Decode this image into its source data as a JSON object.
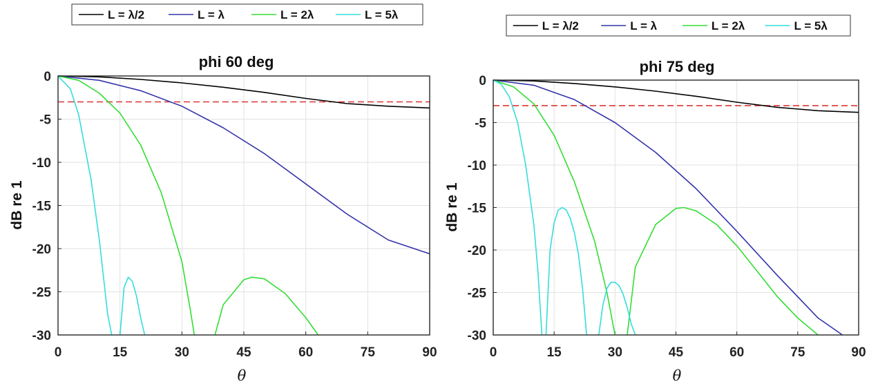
{
  "legend_labels": [
    "L = λ/2",
    "L = λ",
    "L = 2λ",
    "L = 5λ"
  ],
  "series_colors": [
    "#000000",
    "#3333aa",
    "#33dd33",
    "#33dddd"
  ],
  "reference_color": "#dd3333",
  "chart_data": [
    {
      "type": "line",
      "title": "phi 60 deg",
      "xlabel": "θ",
      "ylabel": "dB re 1",
      "xlim": [
        0,
        90
      ],
      "ylim": [
        -30,
        0
      ],
      "xticks": [
        0,
        15,
        30,
        45,
        60,
        75,
        90
      ],
      "yticks": [
        0,
        -5,
        -10,
        -15,
        -20,
        -25,
        -30
      ],
      "grid": true,
      "legend_position": "top",
      "reference_line": {
        "y": -3,
        "style": "dashed"
      },
      "series": [
        {
          "name": "L = λ/2",
          "x": [
            0,
            10,
            20,
            30,
            40,
            50,
            60,
            70,
            80,
            90
          ],
          "y": [
            0,
            -0.1,
            -0.4,
            -0.8,
            -1.3,
            -1.9,
            -2.6,
            -3.2,
            -3.5,
            -3.7
          ]
        },
        {
          "name": "L = λ",
          "x": [
            0,
            10,
            20,
            30,
            40,
            50,
            60,
            70,
            80,
            90
          ],
          "y": [
            0,
            -0.5,
            -1.7,
            -3.5,
            -6.0,
            -9.0,
            -12.5,
            -16.0,
            -19.0,
            -20.6
          ]
        },
        {
          "name": "L = 2λ",
          "x": [
            0,
            5,
            10,
            15,
            20,
            25,
            30,
            32,
            33,
            38,
            40,
            45,
            47,
            50,
            55,
            60,
            63
          ],
          "y": [
            0,
            -0.5,
            -2.0,
            -4.3,
            -8.0,
            -13.5,
            -21.5,
            -27.0,
            -30,
            -30,
            -26.5,
            -23.6,
            -23.3,
            -23.5,
            -25.2,
            -28.0,
            -30
          ]
        },
        {
          "name": "L = 5λ",
          "x": [
            0,
            3,
            5,
            8,
            10,
            12,
            13,
            15,
            16,
            17,
            18,
            19,
            20,
            21
          ],
          "y": [
            0,
            -1.5,
            -4.5,
            -12.0,
            -19.0,
            -27.5,
            -30,
            -30,
            -24.5,
            -23.3,
            -23.8,
            -25.5,
            -28.0,
            -30
          ]
        }
      ]
    },
    {
      "type": "line",
      "title": "phi 75 deg",
      "xlabel": "θ",
      "ylabel": "dB re 1",
      "xlim": [
        0,
        90
      ],
      "ylim": [
        -30,
        0
      ],
      "xticks": [
        0,
        15,
        30,
        45,
        60,
        75,
        90
      ],
      "yticks": [
        0,
        -5,
        -10,
        -15,
        -20,
        -25,
        -30
      ],
      "grid": true,
      "legend_position": "top",
      "reference_line": {
        "y": -3,
        "style": "dashed"
      },
      "series": [
        {
          "name": "L = λ/2",
          "x": [
            0,
            10,
            20,
            30,
            40,
            50,
            60,
            70,
            80,
            90
          ],
          "y": [
            0,
            -0.1,
            -0.4,
            -0.8,
            -1.3,
            -1.9,
            -2.6,
            -3.2,
            -3.6,
            -3.8
          ]
        },
        {
          "name": "L = λ",
          "x": [
            0,
            10,
            20,
            30,
            40,
            50,
            60,
            70,
            80,
            86
          ],
          "y": [
            0,
            -0.6,
            -2.3,
            -5.0,
            -8.5,
            -12.8,
            -17.8,
            -23.0,
            -28.0,
            -30
          ]
        },
        {
          "name": "L = 2λ",
          "x": [
            0,
            5,
            10,
            15,
            20,
            25,
            28,
            30,
            33,
            35,
            40,
            45,
            47,
            50,
            55,
            60,
            65,
            70,
            75,
            80
          ],
          "y": [
            0,
            -0.8,
            -2.8,
            -6.5,
            -12.0,
            -19.0,
            -25.0,
            -30,
            -30,
            -22.0,
            -17.0,
            -15.1,
            -15.0,
            -15.4,
            -17.0,
            -19.5,
            -22.5,
            -25.5,
            -28.0,
            -30
          ]
        },
        {
          "name": "L = 5λ",
          "x": [
            0,
            2,
            4,
            6,
            8,
            10,
            11,
            12,
            13,
            14,
            15,
            16,
            17,
            18,
            19,
            20,
            21,
            22,
            23,
            26,
            27,
            28,
            29,
            30,
            31,
            32,
            33,
            34,
            35
          ],
          "y": [
            0,
            -0.5,
            -2.0,
            -5.0,
            -10.0,
            -17.0,
            -22.5,
            -30,
            -30,
            -20.0,
            -16.8,
            -15.3,
            -15.0,
            -15.3,
            -16.3,
            -18.0,
            -20.5,
            -24.5,
            -30,
            -30,
            -26.5,
            -24.5,
            -23.8,
            -23.8,
            -24.2,
            -25.2,
            -26.8,
            -28.7,
            -30
          ]
        }
      ]
    }
  ]
}
